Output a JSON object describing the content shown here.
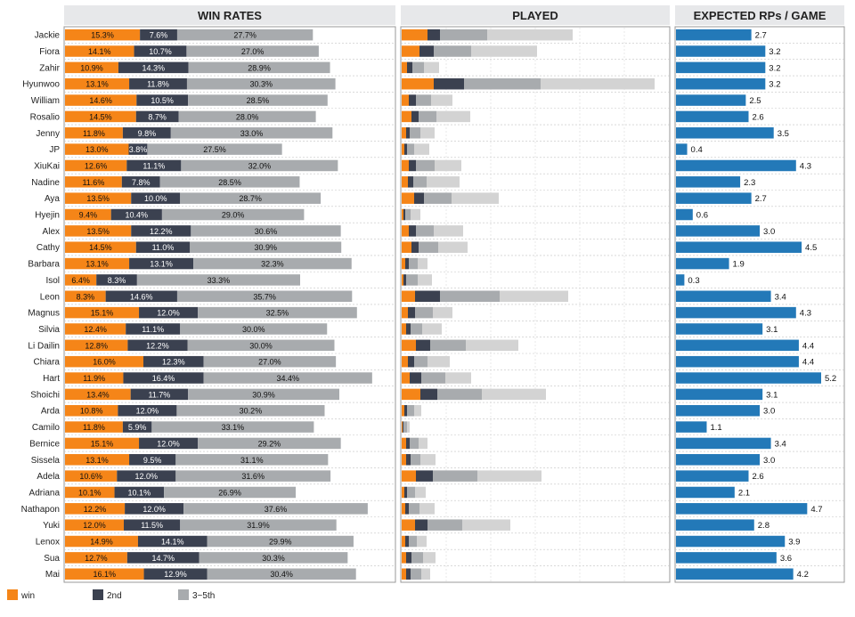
{
  "panels": {
    "win_rates": "WIN RATES",
    "played": "PLAYED",
    "expected": "EXPECTED RPs / GAME"
  },
  "legend": [
    {
      "label": "win",
      "color": "#f58518"
    },
    {
      "label": "2nd",
      "color": "#3b4150"
    },
    {
      "label": "3~5th",
      "color": "#a8abae"
    }
  ],
  "colors": {
    "win": "#f58518",
    "second": "#3b4150",
    "third_fifth": "#a8abae",
    "played_rest": "#d3d3d3",
    "rp": "#2379b8",
    "header_bg": "#e7e8ea"
  },
  "chart_data": [
    {
      "type": "bar",
      "title": "WIN RATES",
      "orientation": "horizontal",
      "stacked": true,
      "categories": [
        "Jackie",
        "Fiora",
        "Zahir",
        "Hyunwoo",
        "William",
        "Rosalio",
        "Jenny",
        "JP",
        "XiuKai",
        "Nadine",
        "Aya",
        "Hyejin",
        "Alex",
        "Cathy",
        "Barbara",
        "Isol",
        "Leon",
        "Magnus",
        "Silvia",
        "Li Dailin",
        "Chiara",
        "Hart",
        "Shoichi",
        "Arda",
        "Camilo",
        "Bernice",
        "Sissela",
        "Adela",
        "Adriana",
        "Nathapon",
        "Yuki",
        "Lenox",
        "Sua",
        "Mai"
      ],
      "series": [
        {
          "name": "win",
          "values": [
            15.3,
            14.1,
            10.9,
            13.1,
            14.6,
            14.5,
            11.8,
            13.0,
            12.6,
            11.6,
            13.5,
            9.4,
            13.5,
            14.5,
            13.1,
            6.4,
            8.3,
            15.1,
            12.4,
            12.8,
            16.0,
            11.9,
            13.4,
            10.8,
            11.8,
            15.1,
            13.1,
            10.6,
            10.1,
            12.2,
            12.0,
            14.9,
            12.7,
            16.1
          ]
        },
        {
          "name": "2nd",
          "values": [
            7.6,
            10.7,
            14.3,
            11.8,
            10.5,
            8.7,
            9.8,
            3.8,
            11.1,
            7.8,
            10.0,
            10.4,
            12.2,
            11.0,
            13.1,
            8.3,
            14.6,
            12.0,
            11.1,
            12.2,
            12.3,
            16.4,
            11.7,
            12.0,
            5.9,
            12.0,
            9.5,
            12.0,
            10.1,
            12.0,
            11.5,
            14.1,
            14.7,
            12.9
          ]
        },
        {
          "name": "3~5th",
          "values": [
            27.7,
            27.0,
            28.9,
            30.3,
            28.5,
            28.0,
            33.0,
            27.5,
            32.0,
            28.5,
            28.7,
            29.0,
            30.6,
            30.9,
            32.3,
            33.3,
            35.7,
            32.5,
            30.0,
            30.0,
            27.0,
            34.4,
            30.9,
            30.2,
            33.1,
            29.2,
            31.1,
            31.6,
            26.9,
            37.6,
            31.9,
            29.9,
            30.3,
            30.4
          ]
        }
      ],
      "unit": "%",
      "xlim": [
        0,
        65
      ]
    },
    {
      "type": "bar",
      "title": "PLAYED",
      "orientation": "horizontal",
      "stacked": true,
      "categories": [
        "Jackie",
        "Fiora",
        "Zahir",
        "Hyunwoo",
        "William",
        "Rosalio",
        "Jenny",
        "JP",
        "XiuKai",
        "Nadine",
        "Aya",
        "Hyejin",
        "Alex",
        "Cathy",
        "Barbara",
        "Isol",
        "Leon",
        "Magnus",
        "Silvia",
        "Li Dailin",
        "Chiara",
        "Hart",
        "Shoichi",
        "Arda",
        "Camilo",
        "Bernice",
        "Sissela",
        "Adela",
        "Adriana",
        "Nathapon",
        "Yuki",
        "Lenox",
        "Sua",
        "Mai"
      ],
      "series": [
        {
          "name": "win",
          "values": [
            29,
            20,
            6,
            36,
            8,
            11,
            5,
            3,
            8,
            7,
            14,
            2,
            8,
            11,
            4,
            2,
            15,
            7,
            5,
            16,
            7,
            9,
            21,
            3,
            1,
            5,
            5,
            16,
            3,
            4,
            15,
            4,
            5,
            5
          ]
        },
        {
          "name": "2nd",
          "values": [
            14,
            16,
            6,
            34,
            8,
            8,
            4,
            3,
            8,
            6,
            11,
            2,
            8,
            8,
            4,
            3,
            28,
            8,
            5,
            16,
            7,
            13,
            19,
            3,
            1,
            4,
            5,
            19,
            3,
            4,
            14,
            4,
            6,
            5
          ]
        },
        {
          "name": "3~5th",
          "values": [
            53,
            42,
            13,
            86,
            17,
            20,
            12,
            8,
            21,
            15,
            31,
            6,
            20,
            22,
            10,
            13,
            67,
            20,
            13,
            40,
            15,
            27,
            50,
            8,
            4,
            10,
            11,
            50,
            9,
            12,
            39,
            9,
            13,
            12
          ]
        },
        {
          "name": "rest",
          "values": [
            96,
            74,
            17,
            128,
            24,
            38,
            16,
            17,
            30,
            37,
            53,
            11,
            33,
            33,
            11,
            16,
            77,
            22,
            22,
            59,
            25,
            29,
            72,
            8,
            3,
            10,
            17,
            72,
            12,
            17,
            54,
            11,
            14,
            10
          ]
        }
      ],
      "xlim": [
        0,
        300
      ]
    },
    {
      "type": "bar",
      "title": "EXPECTED RPs / GAME",
      "orientation": "horizontal",
      "categories": [
        "Jackie",
        "Fiora",
        "Zahir",
        "Hyunwoo",
        "William",
        "Rosalio",
        "Jenny",
        "JP",
        "XiuKai",
        "Nadine",
        "Aya",
        "Hyejin",
        "Alex",
        "Cathy",
        "Barbara",
        "Isol",
        "Leon",
        "Magnus",
        "Silvia",
        "Li Dailin",
        "Chiara",
        "Hart",
        "Shoichi",
        "Arda",
        "Camilo",
        "Bernice",
        "Sissela",
        "Adela",
        "Adriana",
        "Nathapon",
        "Yuki",
        "Lenox",
        "Sua",
        "Mai"
      ],
      "values": [
        "2.7",
        "3.2",
        "3.2",
        "3.2",
        "2.5",
        "2.6",
        "3.5",
        "0.4",
        "4.3",
        "2.3",
        "2.7",
        "0.6",
        "3.0",
        "4.5",
        "1.9",
        "0.3",
        "3.4",
        "4.3",
        "3.1",
        "4.4",
        "4.4",
        "5.2",
        "3.1",
        "3.0",
        "1.1",
        "3.4",
        "3.0",
        "2.6",
        "2.1",
        "4.7",
        "2.8",
        "3.9",
        "3.6",
        "4.2"
      ],
      "xlim": [
        0,
        5.45
      ]
    }
  ]
}
